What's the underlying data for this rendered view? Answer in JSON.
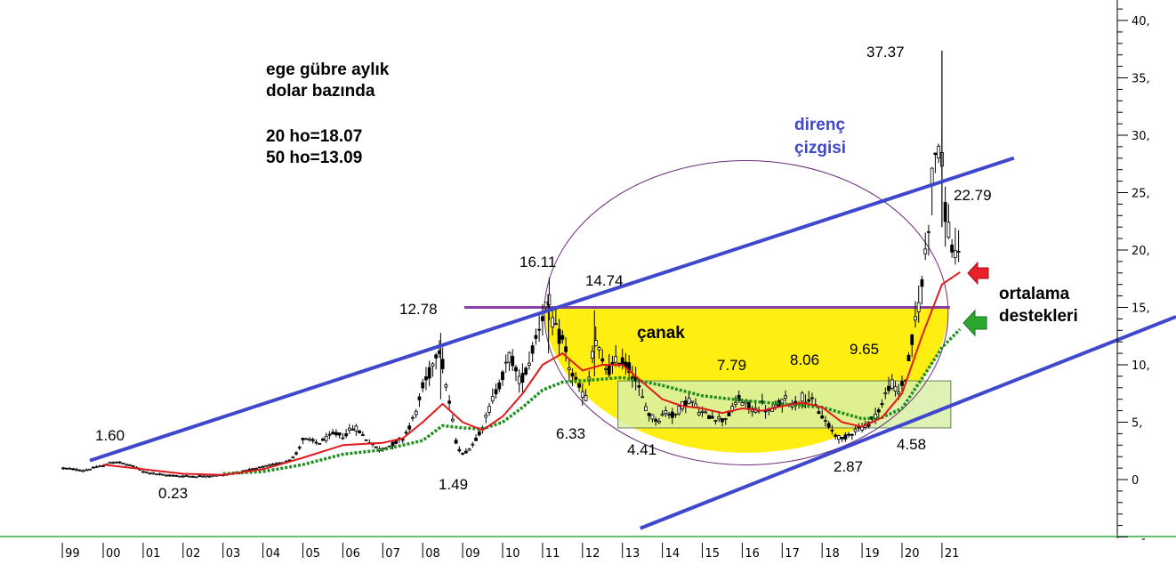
{
  "chart_data": {
    "type": "candlestick",
    "subtitle_lines": [
      "ege gübre aylık",
      "dolar bazında"
    ],
    "ma_lines": [
      "20 ho=18.07",
      "50 ho=13.09"
    ],
    "y_ticks": [
      "0",
      "5,",
      "10,",
      "15,",
      "20,",
      "25,",
      "30,",
      "35,",
      "40,"
    ],
    "ylim": [
      -5,
      42
    ],
    "x_ticks": [
      "99",
      "00",
      "01",
      "02",
      "03",
      "04",
      "05",
      "06",
      "07",
      "08",
      "09",
      "10",
      "11",
      "12",
      "13",
      "14",
      "15",
      "16",
      "17",
      "18",
      "19",
      "20",
      "21"
    ],
    "x_range": [
      1999,
      2021.6
    ],
    "grid": false,
    "price_points": [
      {
        "t": 1999.0,
        "v": 1.0
      },
      {
        "t": 1999.5,
        "v": 0.8
      },
      {
        "t": 2000.0,
        "v": 1.2
      },
      {
        "t": 2000.3,
        "v": 1.6
      },
      {
        "t": 2000.8,
        "v": 1.1
      },
      {
        "t": 2001.0,
        "v": 0.7
      },
      {
        "t": 2001.5,
        "v": 0.4
      },
      {
        "t": 2002.0,
        "v": 0.3
      },
      {
        "t": 2002.5,
        "v": 0.3
      },
      {
        "t": 2003.0,
        "v": 0.4
      },
      {
        "t": 2003.5,
        "v": 0.7
      },
      {
        "t": 2004.0,
        "v": 1.1
      },
      {
        "t": 2004.5,
        "v": 1.5
      },
      {
        "t": 2004.8,
        "v": 2.0
      },
      {
        "t": 2005.0,
        "v": 3.5
      },
      {
        "t": 2005.4,
        "v": 3.2
      },
      {
        "t": 2005.8,
        "v": 4.0
      },
      {
        "t": 2006.0,
        "v": 3.8
      },
      {
        "t": 2006.3,
        "v": 4.6
      },
      {
        "t": 2006.6,
        "v": 3.5
      },
      {
        "t": 2006.9,
        "v": 2.6
      },
      {
        "t": 2007.2,
        "v": 3.0
      },
      {
        "t": 2007.5,
        "v": 3.6
      },
      {
        "t": 2007.8,
        "v": 5.5
      },
      {
        "t": 2008.0,
        "v": 8.0
      },
      {
        "t": 2008.2,
        "v": 9.5
      },
      {
        "t": 2008.4,
        "v": 12.0
      },
      {
        "t": 2008.55,
        "v": 9.0
      },
      {
        "t": 2008.7,
        "v": 6.0
      },
      {
        "t": 2008.85,
        "v": 3.0
      },
      {
        "t": 2009.0,
        "v": 2.2
      },
      {
        "t": 2009.2,
        "v": 2.8
      },
      {
        "t": 2009.4,
        "v": 4.0
      },
      {
        "t": 2009.6,
        "v": 5.5
      },
      {
        "t": 2009.8,
        "v": 7.5
      },
      {
        "t": 2010.0,
        "v": 9.0
      },
      {
        "t": 2010.2,
        "v": 11.0
      },
      {
        "t": 2010.4,
        "v": 8.5
      },
      {
        "t": 2010.6,
        "v": 9.5
      },
      {
        "t": 2010.8,
        "v": 12.0
      },
      {
        "t": 2011.0,
        "v": 14.5
      },
      {
        "t": 2011.15,
        "v": 15.5
      },
      {
        "t": 2011.3,
        "v": 13.0
      },
      {
        "t": 2011.5,
        "v": 12.0
      },
      {
        "t": 2011.7,
        "v": 9.5
      },
      {
        "t": 2011.9,
        "v": 8.0
      },
      {
        "t": 2012.1,
        "v": 7.0
      },
      {
        "t": 2012.3,
        "v": 12.5
      },
      {
        "t": 2012.5,
        "v": 10.0
      },
      {
        "t": 2012.7,
        "v": 9.5
      },
      {
        "t": 2012.9,
        "v": 10.5
      },
      {
        "t": 2013.1,
        "v": 10.0
      },
      {
        "t": 2013.3,
        "v": 9.0
      },
      {
        "t": 2013.5,
        "v": 7.0
      },
      {
        "t": 2013.7,
        "v": 5.5
      },
      {
        "t": 2013.9,
        "v": 5.2
      },
      {
        "t": 2014.1,
        "v": 6.0
      },
      {
        "t": 2014.3,
        "v": 5.5
      },
      {
        "t": 2014.5,
        "v": 6.5
      },
      {
        "t": 2014.7,
        "v": 7.0
      },
      {
        "t": 2014.9,
        "v": 6.0
      },
      {
        "t": 2015.1,
        "v": 5.6
      },
      {
        "t": 2015.3,
        "v": 5.5
      },
      {
        "t": 2015.5,
        "v": 5.2
      },
      {
        "t": 2015.7,
        "v": 5.8
      },
      {
        "t": 2015.9,
        "v": 7.0
      },
      {
        "t": 2016.1,
        "v": 6.5
      },
      {
        "t": 2016.3,
        "v": 6.0
      },
      {
        "t": 2016.5,
        "v": 6.5
      },
      {
        "t": 2016.7,
        "v": 5.8
      },
      {
        "t": 2016.9,
        "v": 6.5
      },
      {
        "t": 2017.1,
        "v": 7.0
      },
      {
        "t": 2017.3,
        "v": 6.5
      },
      {
        "t": 2017.5,
        "v": 7.2
      },
      {
        "t": 2017.7,
        "v": 7.0
      },
      {
        "t": 2017.9,
        "v": 6.0
      },
      {
        "t": 2018.1,
        "v": 5.0
      },
      {
        "t": 2018.3,
        "v": 4.0
      },
      {
        "t": 2018.5,
        "v": 3.5
      },
      {
        "t": 2018.7,
        "v": 4.0
      },
      {
        "t": 2018.9,
        "v": 4.5
      },
      {
        "t": 2019.1,
        "v": 4.6
      },
      {
        "t": 2019.3,
        "v": 5.5
      },
      {
        "t": 2019.5,
        "v": 6.5
      },
      {
        "t": 2019.7,
        "v": 8.5
      },
      {
        "t": 2019.9,
        "v": 7.5
      },
      {
        "t": 2020.1,
        "v": 9.0
      },
      {
        "t": 2020.3,
        "v": 13.0
      },
      {
        "t": 2020.5,
        "v": 17.0
      },
      {
        "t": 2020.65,
        "v": 22.0
      },
      {
        "t": 2020.8,
        "v": 28.0
      },
      {
        "t": 2020.9,
        "v": 30.0
      },
      {
        "t": 2021.0,
        "v": 27.0
      },
      {
        "t": 2021.1,
        "v": 23.0
      },
      {
        "t": 2021.2,
        "v": 21.0
      },
      {
        "t": 2021.3,
        "v": 20.0
      },
      {
        "t": 2021.45,
        "v": 18.5
      }
    ],
    "ma20": [
      {
        "t": 2000.0,
        "v": 1.3
      },
      {
        "t": 2001.0,
        "v": 0.9
      },
      {
        "t": 2002.0,
        "v": 0.5
      },
      {
        "t": 2003.0,
        "v": 0.4
      },
      {
        "t": 2004.0,
        "v": 0.9
      },
      {
        "t": 2005.0,
        "v": 1.9
      },
      {
        "t": 2006.0,
        "v": 3.0
      },
      {
        "t": 2007.0,
        "v": 3.2
      },
      {
        "t": 2007.5,
        "v": 3.6
      },
      {
        "t": 2008.0,
        "v": 5.0
      },
      {
        "t": 2008.5,
        "v": 6.6
      },
      {
        "t": 2009.0,
        "v": 5.0
      },
      {
        "t": 2009.5,
        "v": 4.3
      },
      {
        "t": 2010.0,
        "v": 5.5
      },
      {
        "t": 2010.5,
        "v": 7.5
      },
      {
        "t": 2011.0,
        "v": 10.0
      },
      {
        "t": 2011.5,
        "v": 11.0
      },
      {
        "t": 2012.0,
        "v": 9.5
      },
      {
        "t": 2012.5,
        "v": 10.0
      },
      {
        "t": 2013.0,
        "v": 10.0
      },
      {
        "t": 2013.5,
        "v": 8.5
      },
      {
        "t": 2014.0,
        "v": 7.0
      },
      {
        "t": 2014.5,
        "v": 6.4
      },
      {
        "t": 2015.0,
        "v": 6.2
      },
      {
        "t": 2015.5,
        "v": 5.8
      },
      {
        "t": 2016.0,
        "v": 6.2
      },
      {
        "t": 2016.5,
        "v": 6.0
      },
      {
        "t": 2017.0,
        "v": 6.4
      },
      {
        "t": 2017.5,
        "v": 6.7
      },
      {
        "t": 2018.0,
        "v": 6.3
      },
      {
        "t": 2018.5,
        "v": 5.0
      },
      {
        "t": 2019.0,
        "v": 4.6
      },
      {
        "t": 2019.5,
        "v": 5.4
      },
      {
        "t": 2020.0,
        "v": 7.5
      },
      {
        "t": 2020.5,
        "v": 12.5
      },
      {
        "t": 2021.0,
        "v": 17.0
      },
      {
        "t": 2021.45,
        "v": 18.07
      }
    ],
    "ma50": [
      {
        "t": 2003.0,
        "v": 0.5
      },
      {
        "t": 2004.0,
        "v": 0.7
      },
      {
        "t": 2005.0,
        "v": 1.3
      },
      {
        "t": 2006.0,
        "v": 2.2
      },
      {
        "t": 2007.0,
        "v": 2.6
      },
      {
        "t": 2008.0,
        "v": 3.4
      },
      {
        "t": 2008.5,
        "v": 4.7
      },
      {
        "t": 2009.0,
        "v": 4.5
      },
      {
        "t": 2009.5,
        "v": 4.4
      },
      {
        "t": 2010.0,
        "v": 5.0
      },
      {
        "t": 2010.5,
        "v": 6.3
      },
      {
        "t": 2011.0,
        "v": 7.8
      },
      {
        "t": 2011.5,
        "v": 8.5
      },
      {
        "t": 2012.0,
        "v": 8.6
      },
      {
        "t": 2013.0,
        "v": 8.9
      },
      {
        "t": 2014.0,
        "v": 8.2
      },
      {
        "t": 2015.0,
        "v": 7.3
      },
      {
        "t": 2016.0,
        "v": 6.9
      },
      {
        "t": 2017.0,
        "v": 6.6
      },
      {
        "t": 2018.0,
        "v": 6.3
      },
      {
        "t": 2019.0,
        "v": 5.3
      },
      {
        "t": 2019.5,
        "v": 5.4
      },
      {
        "t": 2020.0,
        "v": 6.2
      },
      {
        "t": 2020.5,
        "v": 8.8
      },
      {
        "t": 2021.0,
        "v": 11.5
      },
      {
        "t": 2021.45,
        "v": 13.09
      }
    ],
    "value_labels": [
      {
        "text": "1.60",
        "t": 2000.2,
        "v": 1.6
      },
      {
        "text": "0.23",
        "t": 2002.0,
        "v": 0.23
      },
      {
        "text": "12.78",
        "t": 2008.4,
        "v": 12.78
      },
      {
        "text": "1.49",
        "t": 2009.0,
        "v": 1.49
      },
      {
        "text": "16.11",
        "t": 2011.1,
        "v": 16.11
      },
      {
        "text": "14.74",
        "t": 2012.3,
        "v": 14.74
      },
      {
        "text": "6.33",
        "t": 2011.9,
        "v": 6.33
      },
      {
        "text": "4.41",
        "t": 2014.0,
        "v": 4.41
      },
      {
        "text": "7.79",
        "t": 2015.5,
        "v": 7.79
      },
      {
        "text": "8.06",
        "t": 2017.4,
        "v": 8.06
      },
      {
        "text": "9.65",
        "t": 2019.0,
        "v": 9.65
      },
      {
        "text": "2.87",
        "t": 2018.2,
        "v": 2.87
      },
      {
        "text": "4.58",
        "t": 2019.9,
        "v": 4.58
      },
      {
        "text": "37.37",
        "t": 2021.0,
        "v": 37.37
      },
      {
        "text": "22.79",
        "t": 2021.3,
        "v": 22.79
      }
    ],
    "annotations": [
      {
        "text": "çanak",
        "color": "#000000"
      },
      {
        "text": "direnç",
        "color": "#3f48cc"
      },
      {
        "text": "çizgisi",
        "color": "#3f48cc"
      },
      {
        "text": "ortalama",
        "color": "#000000"
      },
      {
        "text": "destekleri",
        "color": "#000000"
      }
    ],
    "horizontal_line": {
      "v": 15.0,
      "t_start": 2010.0,
      "t_end": 2021.0,
      "color": "#8a3fa8"
    },
    "channel_upper": {
      "t1": 2000.0,
      "v1": 1.5,
      "t2": 2021.6,
      "v2": 31.5
    },
    "channel_lower": {
      "t1": 2013.0,
      "v1": -4.4,
      "t2": 2023.0,
      "v2": 14.0
    },
    "consolidation_box": {
      "t1": 2013.0,
      "t2": 2021.0,
      "v1": 4.5,
      "v2": 8.6
    },
    "colors": {
      "candles": "#000000",
      "ma20": "#e31a1c",
      "ma50": "#1f8f1f",
      "channel": "#3f48cc",
      "bowl_fill": "#ffee11",
      "box_fill": "#d9f0a8",
      "circle": "#6a2a7a",
      "arrow_red": "#e8202a",
      "arrow_green": "#2aa830",
      "baseline": "#33aa44"
    }
  }
}
